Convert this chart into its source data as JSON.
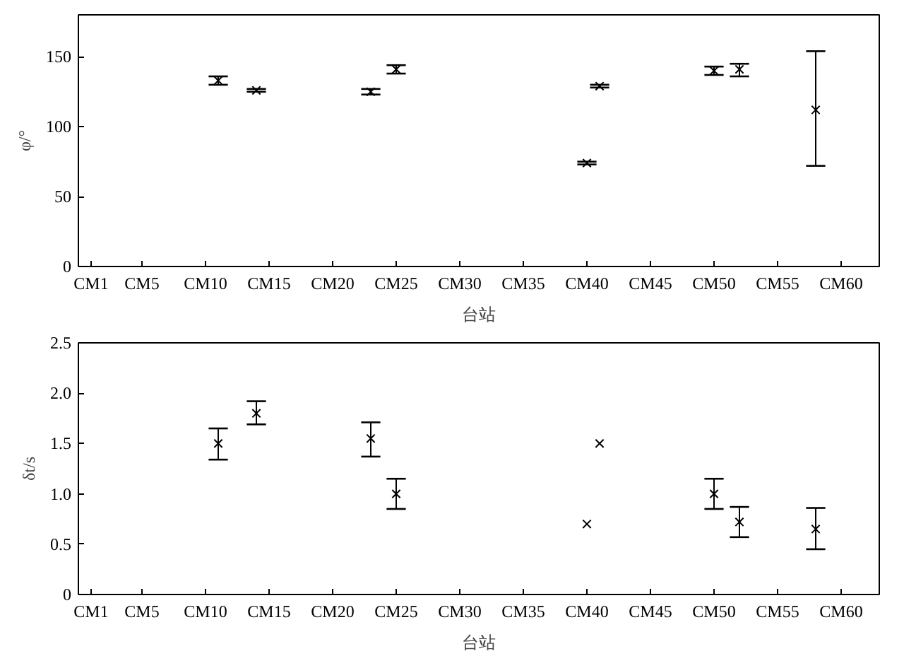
{
  "chart_data": [
    {
      "type": "scatter",
      "xlabel": "台站",
      "ylabel": "φ/°",
      "marker": "cross",
      "categories": [
        "CM1",
        null,
        null,
        null,
        "CM5",
        null,
        null,
        null,
        null,
        "CM10",
        null,
        null,
        null,
        null,
        "CM15",
        null,
        null,
        null,
        null,
        "CM20",
        null,
        null,
        null,
        null,
        "CM25",
        null,
        null,
        null,
        null,
        "CM30",
        null,
        null,
        null,
        null,
        "CM35",
        null,
        null,
        null,
        null,
        "CM40",
        null,
        null,
        null,
        null,
        "CM45",
        null,
        null,
        null,
        null,
        "CM50",
        null,
        null,
        null,
        null,
        "CM55",
        null,
        null,
        null,
        null,
        "CM60",
        null,
        null
      ],
      "ylim": [
        0,
        180
      ],
      "yticks": [
        0,
        50,
        100,
        150
      ],
      "series": [
        {
          "color": "#000000",
          "values": [
            null,
            null,
            null,
            null,
            null,
            null,
            null,
            null,
            null,
            null,
            133,
            null,
            null,
            126,
            null,
            null,
            null,
            null,
            null,
            null,
            null,
            null,
            125,
            null,
            141,
            null,
            null,
            null,
            null,
            null,
            null,
            null,
            null,
            null,
            null,
            null,
            null,
            null,
            null,
            74,
            129,
            null,
            null,
            null,
            null,
            null,
            null,
            null,
            null,
            140,
            null,
            141,
            null,
            null,
            null,
            null,
            null,
            112,
            null,
            null,
            null,
            null
          ],
          "errors": [
            null,
            null,
            null,
            null,
            null,
            null,
            null,
            null,
            null,
            null,
            3,
            null,
            null,
            1,
            null,
            null,
            null,
            null,
            null,
            null,
            null,
            null,
            2,
            null,
            3,
            null,
            null,
            null,
            null,
            null,
            null,
            null,
            null,
            null,
            null,
            null,
            null,
            null,
            null,
            1,
            1,
            null,
            null,
            null,
            null,
            null,
            null,
            null,
            null,
            3,
            null,
            [
              136,
              145
            ],
            null,
            null,
            null,
            null,
            null,
            [
              72,
              154
            ],
            null,
            null,
            null,
            null
          ]
        }
      ]
    },
    {
      "type": "scatter",
      "xlabel": "台站",
      "ylabel": "δt/s",
      "marker": "cross",
      "categories": [
        "CM1",
        null,
        null,
        null,
        "CM5",
        null,
        null,
        null,
        null,
        "CM10",
        null,
        null,
        null,
        null,
        "CM15",
        null,
        null,
        null,
        null,
        "CM20",
        null,
        null,
        null,
        null,
        "CM25",
        null,
        null,
        null,
        null,
        "CM30",
        null,
        null,
        null,
        null,
        "CM35",
        null,
        null,
        null,
        null,
        "CM40",
        null,
        null,
        null,
        null,
        "CM45",
        null,
        null,
        null,
        null,
        "CM50",
        null,
        null,
        null,
        null,
        "CM55",
        null,
        null,
        null,
        null,
        "CM60",
        null,
        null
      ],
      "ylim": [
        0,
        2.5
      ],
      "yticks": [
        0,
        0.5,
        {
          "value": 1,
          "label": "1.0"
        },
        1.5,
        {
          "value": 2,
          "label": "2.0"
        },
        2.5
      ],
      "series": [
        {
          "color": "#000000",
          "values": [
            null,
            null,
            null,
            null,
            null,
            null,
            null,
            null,
            null,
            null,
            1.5,
            null,
            null,
            1.8,
            null,
            null,
            null,
            null,
            null,
            null,
            null,
            null,
            1.55,
            null,
            1.0,
            null,
            null,
            null,
            null,
            null,
            null,
            null,
            null,
            null,
            null,
            null,
            null,
            null,
            null,
            0.7,
            1.5,
            null,
            null,
            null,
            null,
            null,
            null,
            null,
            null,
            1.0,
            null,
            0.72,
            null,
            null,
            null,
            null,
            null,
            0.65,
            null,
            null,
            null,
            null
          ],
          "errors": [
            null,
            null,
            null,
            null,
            null,
            null,
            null,
            null,
            null,
            null,
            [
              1.34,
              1.65
            ],
            null,
            null,
            [
              1.69,
              1.92
            ],
            null,
            null,
            null,
            null,
            null,
            null,
            null,
            null,
            [
              1.37,
              1.71
            ],
            null,
            [
              0.85,
              1.15
            ],
            null,
            null,
            null,
            null,
            null,
            null,
            null,
            null,
            null,
            null,
            null,
            null,
            null,
            null,
            null,
            null,
            null,
            null,
            null,
            null,
            null,
            null,
            null,
            null,
            [
              0.85,
              1.15
            ],
            null,
            [
              0.57,
              0.87
            ],
            null,
            null,
            null,
            null,
            null,
            [
              0.45,
              0.86
            ],
            null,
            null,
            null,
            null
          ]
        }
      ]
    }
  ]
}
